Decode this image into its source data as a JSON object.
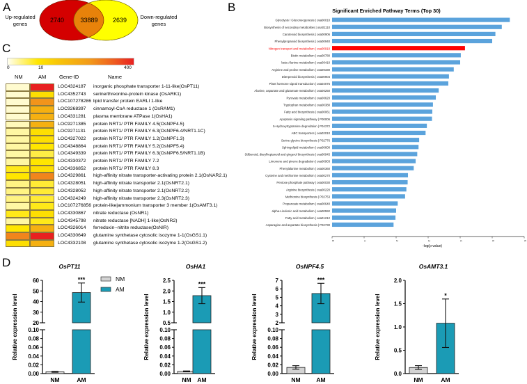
{
  "panels": {
    "a": {
      "letter": "A",
      "left_label_line1": "Up-regulated",
      "left_label_line2": "genes",
      "right_label_line1": "Down-regulated",
      "right_label_line2": "genes",
      "up_only": "2740",
      "overlap": "33889",
      "down_only": "2639",
      "colors": {
        "up": "#d40000",
        "overlap": "#e8820a",
        "down": "#ffff00"
      }
    },
    "b": {
      "letter": "B"
    },
    "c": {
      "letter": "C",
      "colorbar": {
        "min_label": "0",
        "mid_label": "10",
        "max_label": "400"
      },
      "headers": {
        "nm": "NM",
        "am": "AM",
        "gene_id": "Gene-ID",
        "name": "Name"
      },
      "rows": [
        {
          "gene_id": "LOC4324187",
          "name": "inorganic phosphate transporter 1-11-like(OsPT11)",
          "nm": 0.2,
          "am": 400
        },
        {
          "gene_id": "LOC4352743",
          "name": "serine/threonine-protein kinase (OsARK1)",
          "nm": 0.2,
          "am": 12
        },
        {
          "gene_id": "LOC107278286",
          "name": "lipid transfer protein EARLI 1-like",
          "nm": 0.2,
          "am": 80
        },
        {
          "gene_id": "LOC9268397",
          "name": "cinnamoyl-CoA reductase 1 (OsRAM1)",
          "nm": 0.2,
          "am": 40
        },
        {
          "gene_id": "LOC4331281",
          "name": "plasma membrane ATPase 1(OsHA1)",
          "nm": 0.2,
          "am": 40
        },
        {
          "gene_id": "LOC9271385",
          "name": "protein NRT1/ PTR FAMILY 4.5(OsNPF4.5)",
          "nm": 0.5,
          "am": 40
        },
        {
          "gene_id": "LOC9271131",
          "name": "protein NRT1/ PTR FAMILY 6.3(OsNPF6.4/NRT1.1C)",
          "nm": 1,
          "am": 12
        },
        {
          "gene_id": "LOC4327022",
          "name": "protein NRT1/ PTR FAMILY 1.2(OsNPF1.3)",
          "nm": 1,
          "am": 12
        },
        {
          "gene_id": "LOC4348864",
          "name": "protein NRT1/ PTR FAMILY 5.2(OsNPF5.4)",
          "nm": 1,
          "am": 10
        },
        {
          "gene_id": "LOC4349339",
          "name": "protein NRT1/ PTR FAMILY 6.3(OsNPF6.5/NRT1.1B)",
          "nm": 1,
          "am": 5
        },
        {
          "gene_id": "LOC4330372",
          "name": "protein NRT1/ PTR FAMILY 7.2",
          "nm": 1,
          "am": 10
        },
        {
          "gene_id": "LOC4336852",
          "name": "protein NRT1/ PTR FAMILY 8.3",
          "nm": 8,
          "am": 12
        },
        {
          "gene_id": "LOC4329861",
          "name": "high-affinity nitrate transporter-activating protein 2.1(OsNAR2.1)",
          "nm": 10,
          "am": 100
        },
        {
          "gene_id": "LOC4328051",
          "name": "high-affinity nitrate transporter 2.1(OsNRT2.1)",
          "nm": 2,
          "am": 6
        },
        {
          "gene_id": "LOC4328052",
          "name": "high-affinity nitrate transporter 2.1(OsNRT2.2)",
          "nm": 2,
          "am": 6
        },
        {
          "gene_id": "LOC4324249",
          "name": "high-affinity nitrate transporter 2.3(OsNRT2.3)",
          "nm": 2,
          "am": 6
        },
        {
          "gene_id": "LOC107276856",
          "name": "protein-like|ammonium transporter 3 member 1(OsAMT3.1)",
          "nm": 1,
          "am": 8
        },
        {
          "gene_id": "LOC4330867",
          "name": "nitrate reductase (OsNR1)",
          "nm": 8,
          "am": 12
        },
        {
          "gene_id": "LOC4345798",
          "name": "nitrate reductase [NADH] 1-like(OsNR2)",
          "nm": 1,
          "am": 8
        },
        {
          "gene_id": "LOC4326014",
          "name": "ferredoxin--nitrite reductase(OsNIR)",
          "nm": 10,
          "am": 40
        },
        {
          "gene_id": "LOC4330649",
          "name": "glutamine synthetase cytosolic isozyme 1-1(OsGS1.1)",
          "nm": 100,
          "am": 400
        },
        {
          "gene_id": "LOC4332108",
          "name": "glutamine synthetase cytosolic isozyme 1-2(OsGS1.2)",
          "nm": 12,
          "am": 40
        }
      ]
    },
    "d": {
      "letter": "D",
      "legend": [
        {
          "label": "NM",
          "color": "#d3d3d3"
        },
        {
          "label": "AM",
          "color": "#1b9bb5"
        }
      ]
    }
  },
  "chart_data": [
    {
      "id": "pathway-enrichment",
      "type": "bar",
      "orientation": "horizontal",
      "title": "Significant Enriched Pathway Terms (Top 30)",
      "xlabel": "-log(p-value)",
      "ylabel": "",
      "xlim": [
        0,
        6
      ],
      "xticks": [
        "0",
        "1",
        "2",
        "3",
        "4",
        "5",
        "6"
      ],
      "bar_color": "#5ba3dc",
      "highlight_color": "#ff0000",
      "highlight_index": 4,
      "categories": [
        "Glycolysis / Gluconeogenesis | osa00010",
        "Biosynthesis of secondary metabolites | osa01110",
        "Carotenoid biosynthesis | osa00906",
        "Phenylpropanoid biosynthesis | osa00940",
        "Nitrogen transport and metabolism | osa00910",
        "Biotin metabolism | osa00780",
        "beta-Alanine metabolism | osa00410",
        "Arginine and proline metabolism | osa00330",
        "Diterpenoid biosynthesis | osa00904",
        "Plant hormone signal transduction | osa04075",
        "Alanine, aspartate and glutamate metabolism | osa00250",
        "Pyruvate metabolism | osa00620",
        "Tryptophan metabolism | osa00380",
        "Fatty acid biosynthesis | osa00061",
        "Apoptosis signaling pathway | P00006",
        "5-Hydroxytryptamine degredation | P04372",
        "ABC transporters | osa02010",
        "Serine glycine biosynthesis | P02776",
        "Sphingolipid metabolism | osa00600",
        "Stilbenoid, diarylheptanoid and gingerol biosynthesis | osa00945",
        "Limonene and pinene degradation | osa00903",
        "Phenylalanine metabolism | osa00360",
        "Cysteine and methionine metabolism | osa00270",
        "Pentose phosphate pathway | osa00030",
        "Arginine biosynthesis | osa00220",
        "Methionine biosynthesis | P02753",
        "Propanoate metabolism | osa00640",
        "alpha-Linolenic acid metabolism | osa00592",
        "Fatty acid metabolism | osa01212",
        "Asparagine and aspartate biosynthesis | P02730"
      ],
      "values": [
        5.55,
        5.3,
        5.1,
        5.0,
        4.15,
        4.02,
        4.0,
        3.8,
        3.65,
        3.63,
        3.33,
        3.24,
        3.15,
        3.13,
        3.12,
        2.96,
        2.92,
        2.72,
        2.7,
        2.66,
        2.61,
        2.55,
        2.37,
        2.36,
        2.32,
        2.28,
        2.05,
        2.0,
        1.98,
        1.92
      ]
    },
    {
      "id": "OsPT11",
      "type": "bar",
      "title": "OsPT11",
      "ylabel": "Relative expression level",
      "categories": [
        "NM",
        "AM"
      ],
      "values": [
        0.004,
        48.5
      ],
      "errors": [
        0.001,
        9.0
      ],
      "significance": [
        "",
        "***"
      ],
      "broken_axis": true,
      "lower_range": [
        0,
        0.1
      ],
      "lower_ticks": [
        "0.00",
        "0.02",
        "0.04",
        "0.06",
        "0.08",
        "0.10"
      ],
      "upper_range": [
        20,
        60
      ],
      "upper_ticks": [
        "20",
        "30",
        "40",
        "50",
        "60"
      ]
    },
    {
      "id": "OsHA1",
      "type": "bar",
      "title": "OsHA1",
      "ylabel": "Relative expression level",
      "categories": [
        "NM",
        "AM"
      ],
      "values": [
        0.005,
        1.78
      ],
      "errors": [
        0.001,
        0.38
      ],
      "significance": [
        "",
        "***"
      ],
      "broken_axis": true,
      "lower_range": [
        0,
        0.1
      ],
      "lower_ticks": [
        "0.00",
        "0.02",
        "0.04",
        "0.06",
        "0.08",
        "0.10"
      ],
      "upper_range": [
        0.5,
        2.5
      ],
      "upper_ticks": [
        "0.5",
        "1.0",
        "1.5",
        "2.0",
        "2.5"
      ]
    },
    {
      "id": "OsNPF4.5",
      "type": "bar",
      "title": "OsNPF4.5",
      "ylabel": "Relative expression level",
      "categories": [
        "NM",
        "AM"
      ],
      "values": [
        0.014,
        5.45
      ],
      "errors": [
        0.004,
        1.2
      ],
      "significance": [
        "",
        "***"
      ],
      "broken_axis": true,
      "lower_range": [
        0,
        0.1
      ],
      "lower_ticks": [
        "0.00",
        "0.02",
        "0.04",
        "0.06",
        "0.08",
        "0.10"
      ],
      "upper_range": [
        2,
        7
      ],
      "upper_ticks": [
        "2",
        "3",
        "4",
        "5",
        "6",
        "7"
      ]
    },
    {
      "id": "OsAMT3.1",
      "type": "bar",
      "title": "OsAMT3.1",
      "ylabel": "Relative expression level",
      "categories": [
        "NM",
        "AM"
      ],
      "values": [
        0.13,
        1.08
      ],
      "errors": [
        0.04,
        0.52
      ],
      "significance": [
        "",
        "*"
      ],
      "broken_axis": false,
      "ylim": [
        0,
        2.0
      ],
      "yticks": [
        "0.0",
        "0.5",
        "1.0",
        "1.5",
        "2.0"
      ]
    }
  ]
}
